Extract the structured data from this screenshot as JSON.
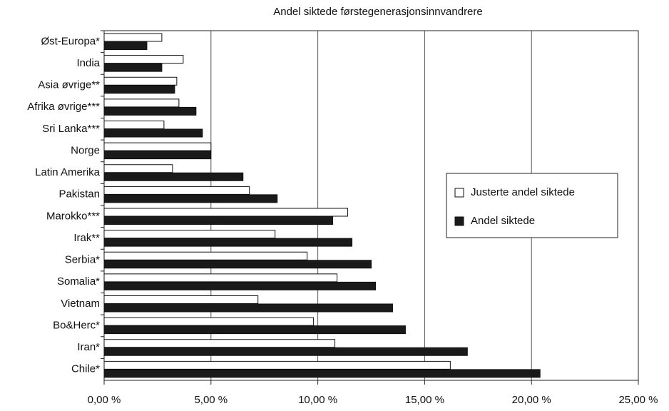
{
  "chart_data": {
    "type": "hbar",
    "title": "Andel siktede førstegenerasjonsinnvandrere",
    "categories": [
      "Øst-Europa*",
      "India",
      "Asia øvrige**",
      "Afrika øvrige***",
      "Sri Lanka***",
      "Norge",
      "Latin Amerika",
      "Pakistan",
      "Marokko***",
      "Irak**",
      "Serbia*",
      "Somalia*",
      "Vietnam",
      "Bo&Herc*",
      "Iran*",
      "Chile*"
    ],
    "series": [
      {
        "name": "Justerte andel siktede",
        "color": "#ffffff",
        "values": [
          2.7,
          3.7,
          3.4,
          3.5,
          2.8,
          5.0,
          3.2,
          6.8,
          11.4,
          8.0,
          9.5,
          10.9,
          7.2,
          9.8,
          10.8,
          16.2
        ]
      },
      {
        "name": "Andel siktede",
        "color": "#1a1a1a",
        "values": [
          2.0,
          2.7,
          3.3,
          4.3,
          4.6,
          5.0,
          6.5,
          8.1,
          10.7,
          11.6,
          12.5,
          12.7,
          13.5,
          14.1,
          17.0,
          20.4
        ]
      }
    ],
    "xlim": [
      0,
      25
    ],
    "xticks": [
      {
        "value": 0,
        "label": "0,00 %"
      },
      {
        "value": 5,
        "label": "5,00 %"
      },
      {
        "value": 10,
        "label": "10,00 %"
      },
      {
        "value": 15,
        "label": "15,00 %"
      },
      {
        "value": 20,
        "label": "20,00 %"
      },
      {
        "value": 25,
        "label": "25,00 %"
      }
    ],
    "grid": true,
    "legend": "right"
  }
}
